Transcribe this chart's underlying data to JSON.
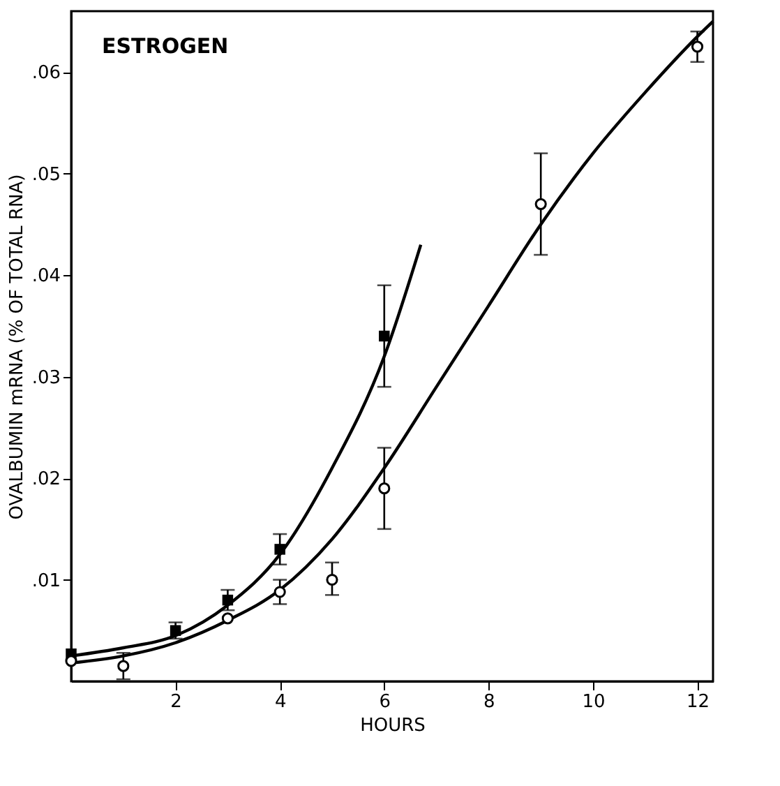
{
  "chart_data": {
    "type": "scatter",
    "xlabel": "HOURS",
    "ylabel": "OVALBUMIN mRNA (% OF TOTAL RNA)",
    "annotations": [
      "ESTROGEN"
    ],
    "xlim": [
      0,
      12.3
    ],
    "ylim": [
      0,
      0.066
    ],
    "xticks": [
      2,
      4,
      6,
      8,
      10,
      12
    ],
    "yticks": [
      {
        "value": 0.01,
        "label": ".01"
      },
      {
        "value": 0.02,
        "label": ".02"
      },
      {
        "value": 0.03,
        "label": ".03"
      },
      {
        "value": 0.04,
        "label": ".04"
      },
      {
        "value": 0.05,
        "label": ".05"
      },
      {
        "value": 0.06,
        "label": ".06"
      }
    ],
    "grid": false,
    "legend": false,
    "series": [
      {
        "type": "line",
        "color": "#000000",
        "marker": "none",
        "x": [
          0,
          1,
          2,
          3,
          4,
          5,
          6,
          6.7
        ],
        "values": [
          0.0025,
          0.0033,
          0.0045,
          0.0075,
          0.0125,
          0.021,
          0.032,
          0.043
        ]
      },
      {
        "type": "line",
        "color": "#000000",
        "marker": "none",
        "x": [
          0,
          1,
          2,
          3,
          4,
          5,
          6,
          7,
          8,
          9,
          10,
          11,
          12,
          12.3
        ],
        "values": [
          0.0018,
          0.0025,
          0.0038,
          0.006,
          0.009,
          0.014,
          0.021,
          0.029,
          0.037,
          0.045,
          0.052,
          0.058,
          0.0635,
          0.065
        ]
      },
      {
        "color": "#000000",
        "marker": "square",
        "x": [
          0,
          2,
          3,
          4,
          6
        ],
        "values": [
          0.0027,
          0.005,
          0.008,
          0.013,
          0.034
        ],
        "errors": [
          null,
          0.0008,
          0.001,
          0.0015,
          0.005
        ]
      },
      {
        "color": "#000000",
        "marker": "circle",
        "x": [
          0,
          1,
          3,
          4,
          5,
          6,
          9,
          12
        ],
        "values": [
          0.002,
          0.0015,
          0.0062,
          0.0088,
          0.01,
          0.019,
          0.047,
          0.0625
        ],
        "errors": [
          null,
          0.0013,
          null,
          0.0012,
          [
            0.0085,
            0.0117
          ],
          [
            0.015,
            0.023
          ],
          [
            0.042,
            0.052
          ],
          [
            0.061,
            0.064
          ]
        ]
      }
    ]
  }
}
